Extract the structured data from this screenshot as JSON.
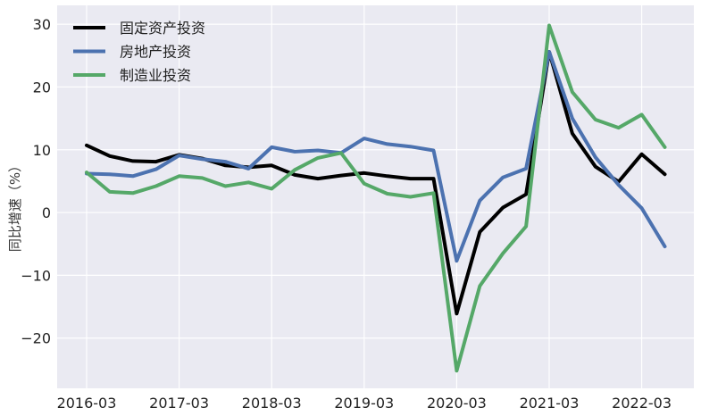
{
  "chart_data": {
    "type": "line",
    "title": "",
    "xlabel": "",
    "ylabel": "同比增速（%）",
    "ylim": [
      -28,
      33
    ],
    "yticks": [
      30,
      20,
      10,
      0,
      -10,
      -20
    ],
    "ytick_labels": [
      "30",
      "20",
      "10",
      "0",
      "−10",
      "−20"
    ],
    "x": [
      "2016-03",
      "2016-06",
      "2016-09",
      "2016-12",
      "2017-03",
      "2017-06",
      "2017-09",
      "2017-12",
      "2018-03",
      "2018-06",
      "2018-09",
      "2018-12",
      "2019-03",
      "2019-06",
      "2019-09",
      "2019-12",
      "2020-03",
      "2020-06",
      "2020-09",
      "2020-12",
      "2021-03",
      "2021-06",
      "2021-09",
      "2021-12",
      "2022-03",
      "2022-06"
    ],
    "xticks": [
      "2016-03",
      "2017-03",
      "2018-03",
      "2019-03",
      "2020-03",
      "2021-03",
      "2022-03"
    ],
    "grid": true,
    "legend_position": "top-left",
    "series": [
      {
        "name": "固定资产投资",
        "color": "#000000",
        "values": [
          10.7,
          9.0,
          8.2,
          8.1,
          9.2,
          8.6,
          7.5,
          7.2,
          7.5,
          6.0,
          5.4,
          5.9,
          6.3,
          5.8,
          5.4,
          5.4,
          -16.1,
          -3.1,
          0.8,
          2.9,
          25.6,
          12.6,
          7.3,
          4.9,
          9.3,
          6.1
        ]
      },
      {
        "name": "房地产投资",
        "color": "#4c72b0",
        "values": [
          6.2,
          6.1,
          5.8,
          6.9,
          9.1,
          8.5,
          8.1,
          7.0,
          10.4,
          9.7,
          9.9,
          9.5,
          11.8,
          10.9,
          10.5,
          9.9,
          -7.7,
          1.9,
          5.6,
          7.0,
          25.6,
          15.0,
          8.8,
          4.4,
          0.7,
          -5.4
        ]
      },
      {
        "name": "制造业投资",
        "color": "#55a868",
        "values": [
          6.4,
          3.3,
          3.1,
          4.2,
          5.8,
          5.5,
          4.2,
          4.8,
          3.8,
          6.8,
          8.7,
          9.5,
          4.6,
          3.0,
          2.5,
          3.1,
          -25.2,
          -11.7,
          -6.5,
          -2.2,
          29.8,
          19.2,
          14.8,
          13.5,
          15.6,
          10.4
        ]
      }
    ]
  }
}
